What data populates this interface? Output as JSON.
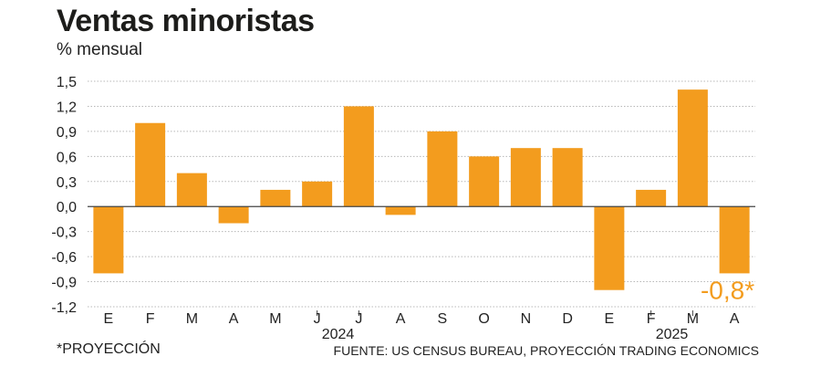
{
  "title": "Ventas minoristas",
  "subtitle": "% mensual",
  "footnote": "*PROYECCIÓN",
  "source": "FUENTE: US CENSUS BUREAU, PROYECCIÓN TRADING ECONOMICS",
  "colors": {
    "bar": "#f39c1e",
    "grid": "#b8b8b8",
    "axis": "#444444",
    "text": "#222222"
  },
  "chart_data": {
    "type": "bar",
    "title": "Ventas minoristas",
    "subtitle": "% mensual",
    "categories": [
      "E",
      "F",
      "M",
      "A",
      "M",
      "J",
      "J",
      "A",
      "S",
      "O",
      "N",
      "D",
      "E",
      "F",
      "M",
      "A"
    ],
    "year_labels": [
      {
        "label": "2024",
        "center_between": [
          5,
          6
        ]
      },
      {
        "label": "2025",
        "center_between": [
          13,
          14
        ]
      }
    ],
    "values": [
      -0.8,
      1.0,
      0.4,
      -0.2,
      0.2,
      0.3,
      1.2,
      -0.1,
      0.9,
      0.6,
      0.7,
      0.7,
      -1.0,
      0.2,
      1.4,
      -0.8
    ],
    "ylim": [
      -1.2,
      1.5
    ],
    "yticks": [
      1.5,
      1.2,
      0.9,
      0.6,
      0.3,
      0.0,
      -0.3,
      -0.6,
      -0.9,
      -1.2
    ],
    "ytick_labels": [
      "1,5",
      "1,2",
      "0,9",
      "0,6",
      "0,3",
      "0,0",
      "-0,3",
      "-0,6",
      "-0,9",
      "-1,2"
    ],
    "annotation": {
      "index": 15,
      "text": "-0,8*"
    },
    "grid": true
  }
}
